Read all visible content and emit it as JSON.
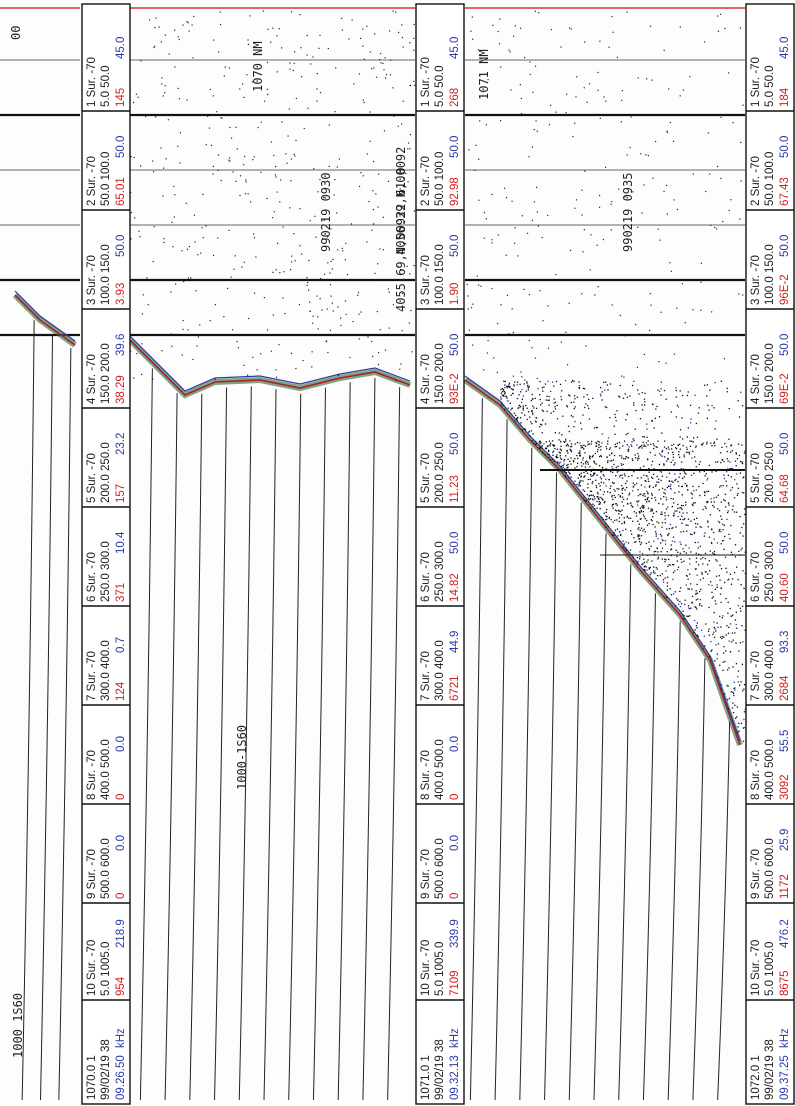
{
  "strips": [
    {
      "header": [
        "1070.0 1",
        "99/02/19 38"
      ],
      "time": "09.26.50",
      "unit": "kHz",
      "blocks": [
        {
          "label": "1 Sur. -70",
          "range": "5.0 50.0",
          "value": "145",
          "sv": "45.0"
        },
        {
          "label": "2 Sur. -70",
          "range": "50.0 100.0",
          "value": "65.01",
          "sv": "50.0"
        },
        {
          "label": "3 Sur. -70",
          "range": "100.0 150.0",
          "value": "3.93",
          "sv": "50.0"
        },
        {
          "label": "4 Sur. -70",
          "range": "150.0 200.0",
          "value": "38.29",
          "sv": "39.6"
        },
        {
          "label": "5 Sur. -70",
          "range": "200.0 250.0",
          "value": "157",
          "sv": "23.2"
        },
        {
          "label": "6 Sur. -70",
          "range": "250.0 300.0",
          "value": "371",
          "sv": "10.4"
        },
        {
          "label": "7 Sur. -70",
          "range": "300.0 400.0",
          "value": "124",
          "sv": "0.7"
        },
        {
          "label": "8 Sur. -70",
          "range": "400.0 500.0",
          "value": "0",
          "sv": "0.0"
        },
        {
          "label": "9 Sur. -70",
          "range": "500.0 600.0",
          "value": "0",
          "sv": "0.0"
        },
        {
          "label": "10 Sur. -70",
          "range": "5.0 1005.0",
          "value": "954",
          "sv": "218.9"
        }
      ]
    },
    {
      "header": [
        "1071.0 1",
        "99/02/19 38"
      ],
      "time": "09.32.13",
      "unit": "kHz",
      "blocks": [
        {
          "label": "1 Sur. -70",
          "range": "5.0 50.0",
          "value": "268",
          "sv": "45.0"
        },
        {
          "label": "2 Sur. -70",
          "range": "50.0 100.0",
          "value": "92.98",
          "sv": "50.0"
        },
        {
          "label": "3 Sur. -70",
          "range": "100.0 150.0",
          "value": "1.90",
          "sv": "50.0"
        },
        {
          "label": "4 Sur. -70",
          "range": "150.0 200.0",
          "value": "93E-2",
          "sv": "50.0"
        },
        {
          "label": "5 Sur. -70",
          "range": "200.0 250.0",
          "value": "11.23",
          "sv": "50.0"
        },
        {
          "label": "6 Sur. -70",
          "range": "250.0 300.0",
          "value": "14.82",
          "sv": "50.0"
        },
        {
          "label": "7 Sur. -70",
          "range": "300.0 400.0",
          "value": "6721",
          "sv": "44.9"
        },
        {
          "label": "8 Sur. -70",
          "range": "400.0 500.0",
          "value": "0",
          "sv": "0.0"
        },
        {
          "label": "9 Sur. -70",
          "range": "500.0 600.0",
          "value": "0",
          "sv": "0.0"
        },
        {
          "label": "10 Sur. -70",
          "range": "5.0 1005.0",
          "value": "7109",
          "sv": "339.9"
        }
      ]
    },
    {
      "header": [
        "1072.0 1",
        "99/02/19 38"
      ],
      "time": "09.37.25",
      "unit": "kHz",
      "blocks": [
        {
          "label": "1 Sur. -70",
          "range": "5.0 50.0",
          "value": "184",
          "sv": "45.0"
        },
        {
          "label": "2 Sur. -70",
          "range": "50.0 100.0",
          "value": "67.43",
          "sv": "50.0"
        },
        {
          "label": "3 Sur. -70",
          "range": "100.0 150.0",
          "value": "96E-2",
          "sv": "50.0"
        },
        {
          "label": "4 Sur. -70",
          "range": "150.0 200.0",
          "value": "69E-2",
          "sv": "50.0"
        },
        {
          "label": "5 Sur. -70",
          "range": "200.0 250.0",
          "value": "64.68",
          "sv": "50.0"
        },
        {
          "label": "6 Sur. -70",
          "range": "250.0 300.0",
          "value": "40.60",
          "sv": "50.0"
        },
        {
          "label": "7 Sur. -70",
          "range": "300.0 400.0",
          "value": "2684",
          "sv": "93.3"
        },
        {
          "label": "8 Sur. -70",
          "range": "400.0 500.0",
          "value": "3092",
          "sv": "55.5"
        },
        {
          "label": "9 Sur. -70",
          "range": "500.0 600.0",
          "value": "1172",
          "sv": "25.9"
        },
        {
          "label": "10 Sur. -70",
          "range": "5.0 1005.0",
          "value": "8675",
          "sv": "476.2"
        }
      ]
    }
  ],
  "annotations": [
    {
      "text": "1000 1S60"
    },
    {
      "text": "00"
    },
    {
      "text": "1000-1S60"
    },
    {
      "text": "1070 NM"
    },
    {
      "text": "990219 0930"
    },
    {
      "text": "4056.39,N,00092"
    },
    {
      "text": "4055.69,N,00922 61.0"
    },
    {
      "text": "1071 NM"
    },
    {
      "text": "990219 0935"
    }
  ]
}
